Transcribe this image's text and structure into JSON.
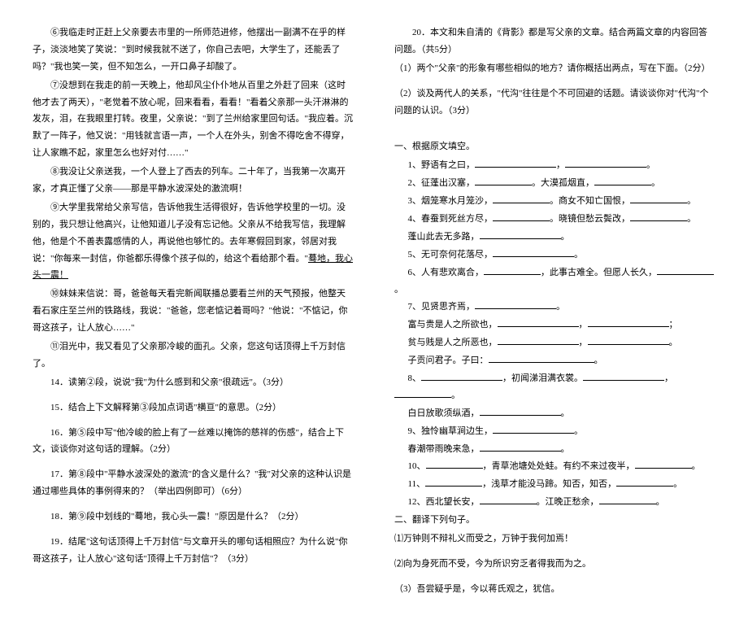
{
  "left": {
    "p6": "⑥我临走时正赶上父亲要去市里的一所师范进修，他摆出一副满不在乎的样子，淡淡地笑了笑说：\"到时候我就不送了，你自己去吧，大学生了，还能丢了吗？\"我也笑一笑，但不知怎么，一开口鼻子却酸了。",
    "p7": "⑦没想到在我走的前一天晚上，他却风尘仆仆地从百里之外赶了回来（这时他才去了两天），\"老觉着不放心呢，回来看看，看看！\"看着父亲那一头汗淋淋的发灰，泪，在我眼里打转。夜里，父亲说：\"到了兰州给家里回句话。\"我应着。沉默了一阵子，他又说：\"用钱就言语一声，一个人在外头，别舍不得吃舍不得穿，让人家瞧不起，家里怎么也好对付……\"",
    "p8": "⑧我没让父亲送我，一个人登上了西去的列车。二十年了，当我第一次离开家，才真正懂了父亲——那是平静水波深处的激流啊！",
    "p9": "⑨大学里我常给父亲写信，告诉他我生活得很好，告诉他学校里的一切。没别的，我只想让他高兴，让他知道儿子没有忘记他。父亲从不给我写信，我理解他，他是个不善表露感情的人，再说他也够忙的。去年寒假回到家，邻居对我说：\"你每来一封信，你爸都乐得像个孩子似的，给这个看给那个看。\"",
    "p9u": "蓦地，我心头一震！",
    "p10": "⑩妹妹来信说：哥，爸爸每天看完新闻联播总要看兰州的天气预报，他整天看石家庄至兰州的铁路线，我说：\"爸爸，您老惦记着哥吗？\"他说：\"不惦记，你哥这孩子，让人放心……\"",
    "p11": "⑪泪光中，我又看见了父亲那冷峻的面孔。父亲，您这句话顶得上千万封信了。",
    "q14": "14．读第②段，说说\"我\"为什么感到和父亲\"很疏远\"。（3分）",
    "q15": "15．结合上下文解释第③段加点词语\"横亘\"的意思。（2分）",
    "q16": "16．第⑤段中写\"他冷峻的脸上有了一丝难以掩饰的慈祥的伤感\"，结合上下文，谈谈你对这句话的理解。（2分）",
    "q17": "17．第⑧段中\"平静水波深处的激流\"的含义是什么？\"我\"对父亲的这种认识是通过哪些具体的事例得来的？（举出四例即可）（6分）",
    "q18": "18．第⑨段中划线的\"蓦地，我心头一震！\"原因是什么？（2分）",
    "q19": "19．结尾\"这句话顶得上千万封信\"与文章开头的哪句话相照应？为什么说\"你哥这孩子，让人放心\"这句话\"顶得上千万封信\"？（3分）"
  },
  "right": {
    "q20": "20．本文和朱自清的《背影》都是写父亲的文章。结合两篇文章的内容回答问题。（共5分）",
    "q20_1": "（1）两个\"父亲\"的形象有哪些相似的地方？请你概括出两点，写在下面。（2分）",
    "q20_2": "（2）谈及两代人的关系，\"代沟\"往往是个不可回避的话题。请谈谈你对\"代沟\"个问题的认识。（3分）",
    "section": "一、根据原文填空。",
    "items": {
      "1": "1、野语有之曰，",
      "2": "2、征蓬出汉塞，",
      "2b": "。大漠孤烟直，",
      "3": "3、烟笼寒水月笼沙，",
      "3b": "。商女不知亡国恨，",
      "4_pre": "4、春蚕到死丝方尽，",
      "4_mid": "。晓镜但愁云鬓改，",
      "4_post": "蓬山此去无多路，",
      "5": "5、无可奈何花落尽，",
      "6": "6、人有悲欢离合，",
      "6b": "，此事古难全。但愿人长久，",
      "7": "7、见贤思齐焉，",
      "7a_pre": "富与贵是人之所欲也，",
      "7a_post": "；",
      "7b_pre": "贫与贱是人之所恶也，",
      "7c": "子贡问君子。子曰：",
      "8": "8、",
      "8b": "，初闻涕泪满衣裳。",
      "8c": "白日放歌须纵酒，",
      "9": "9、独怜幽草涧边生，",
      "9b": "春潮带雨晚来急，",
      "10": "10、",
      "10b": "，青草池塘处处蛙。有约不来过夜半，",
      "11": "11、",
      "11b": "，浅草才能没马蹄。知否，知否，",
      "12": "12、西北望长安，",
      "12b": "。江晚正愁余，",
      "trans": "二、翻译下列句子。",
      "t1": "⑴万钟则不辩礼义而受之，万钟于我何加焉！",
      "t2": "⑵向为身死而不受，今为所识穷乏者得我而为之。",
      "t3": "（3）吾尝疑乎是，今以蒋氏观之，犹信。"
    }
  }
}
